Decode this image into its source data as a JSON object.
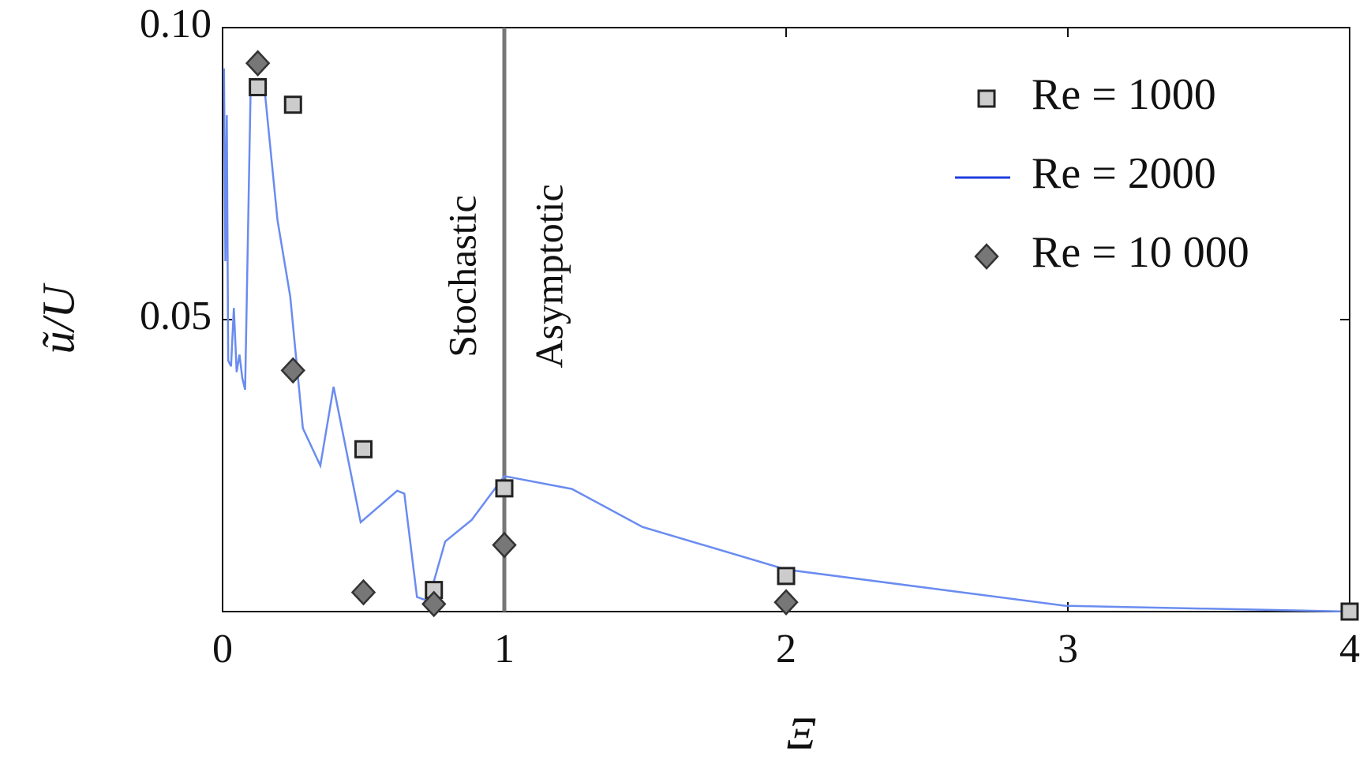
{
  "chart_data": {
    "type": "scatter",
    "xlabel": "Ξ",
    "ylabel": "ũ/U",
    "xlim": [
      0,
      4
    ],
    "ylim": [
      0,
      0.1
    ],
    "xticks": [
      0,
      1,
      2,
      3,
      4
    ],
    "yticks": [
      0.05,
      {
        "value": 0.1,
        "label": "0.10"
      }
    ],
    "legend": "upper right",
    "vline": 1,
    "annotations": [
      "Stochastic",
      "Asymptotic"
    ],
    "series": [
      {
        "name": "Re = 1000",
        "marker": "square",
        "color": "#cccccc",
        "x": [
          0.125,
          0.25,
          0.5,
          0.75,
          1.0,
          2.0,
          4.0
        ],
        "values": [
          0.0898,
          0.0868,
          0.0278,
          0.0037,
          0.0211,
          0.0061,
          0.0
        ]
      },
      {
        "name": "Re = 2000",
        "marker": "line",
        "color": "#6a8cf0",
        "x": [
          0.005,
          0.01,
          0.015,
          0.02,
          0.03,
          0.04,
          0.05,
          0.06,
          0.07,
          0.08,
          0.1,
          0.15,
          0.195,
          0.24,
          0.285,
          0.347,
          0.394,
          0.49,
          0.62,
          0.645,
          0.69,
          0.73,
          0.79,
          0.884,
          1.0,
          1.24,
          1.49,
          2.0,
          2.99,
          4.0
        ],
        "values": [
          0.093,
          0.06,
          0.085,
          0.043,
          0.042,
          0.052,
          0.041,
          0.044,
          0.04,
          0.038,
          0.0906,
          0.089,
          0.067,
          0.054,
          0.0314,
          0.025,
          0.0385,
          0.0153,
          0.0207,
          0.0202,
          0.0025,
          0.0018,
          0.012,
          0.0157,
          0.0232,
          0.021,
          0.0145,
          0.0072,
          0.001,
          0.0
        ]
      },
      {
        "name": "Re = 10 000",
        "marker": "diamond",
        "color": "#777777",
        "x": [
          0.125,
          0.25,
          0.5,
          0.75,
          1.0,
          2.0
        ],
        "values": [
          0.0939,
          0.0413,
          0.0033,
          0.0013,
          0.0114,
          0.0016
        ]
      }
    ]
  }
}
